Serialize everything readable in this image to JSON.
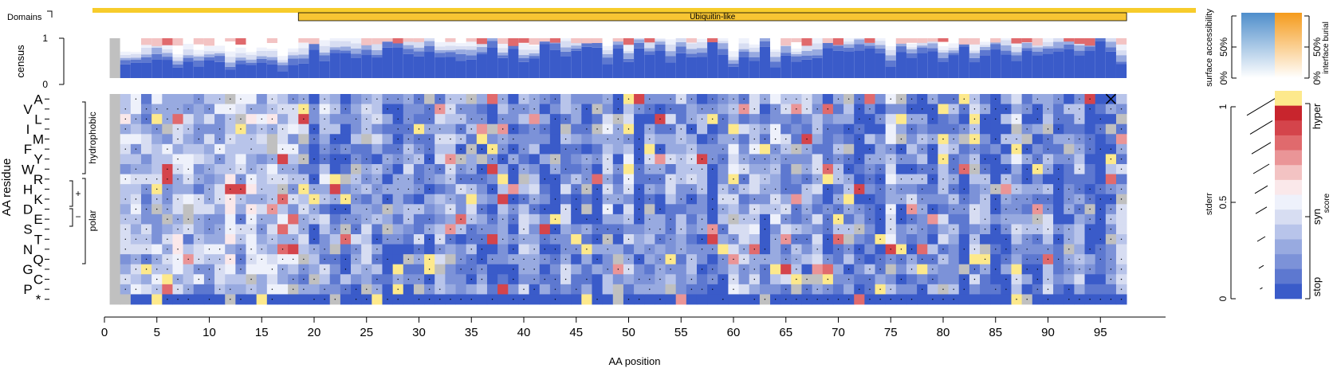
{
  "chart_data": {
    "type": "heatmap",
    "title": "",
    "xlabel": "AA position",
    "ylabel": "AA residue",
    "x_ticks": [
      0,
      5,
      10,
      15,
      20,
      25,
      30,
      35,
      40,
      45,
      50,
      55,
      60,
      65,
      70,
      75,
      80,
      85,
      90,
      95
    ],
    "n_positions": 97,
    "domain_track": {
      "label": "Domains",
      "domains": [
        {
          "name": "Ubiquitin-like",
          "start": 19,
          "end": 97
        }
      ]
    },
    "census": {
      "label": "census",
      "ticks": [
        "0",
        "1"
      ]
    },
    "rows": [
      "A",
      "V",
      "L",
      "I",
      "M",
      "F",
      "Y",
      "W",
      "R",
      "H",
      "K",
      "D",
      "E",
      "S",
      "T",
      "N",
      "Q",
      "G",
      "C",
      "P",
      "*"
    ],
    "groups": [
      {
        "label": "hydrophobic",
        "from": "A",
        "to": "Y"
      },
      {
        "label": "polar",
        "from": "W",
        "to": "Q"
      },
      {
        "label": "+",
        "from": "R",
        "to": "K"
      },
      {
        "label": "−",
        "from": "D",
        "to": "E"
      }
    ],
    "score_legend": {
      "title": "score",
      "labels": [
        "hyper",
        "syn",
        "stop"
      ],
      "colors": [
        "#fde98c",
        "#c8252d",
        "#d4444b",
        "#e06a6d",
        "#ea9597",
        "#f3c3c3",
        "#fae8ea",
        "#eef1fb",
        "#d7ddf2",
        "#b8c4ea",
        "#98aae0",
        "#7c92d8",
        "#5d78d0",
        "#3a5bc9"
      ]
    },
    "stderr_legend": {
      "title": "stderr",
      "ticks": [
        "0",
        "0.5",
        "1"
      ]
    },
    "accessibility_legend": {
      "surface_label": "surface accessibility",
      "burial_label": "interface burial",
      "ticks": [
        "0%",
        "50%"
      ]
    },
    "missing_color": "#c0c0c0",
    "annotations": [
      {
        "type": "x-mark",
        "row": "A",
        "position": 96
      }
    ]
  }
}
